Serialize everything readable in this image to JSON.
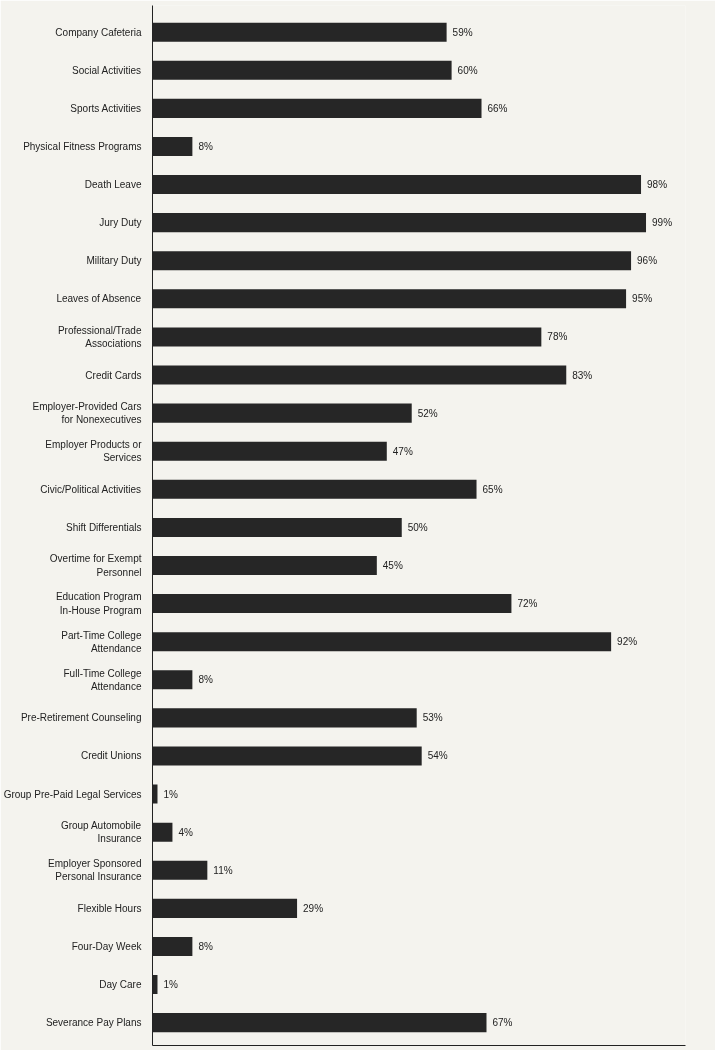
{
  "chart_data": {
    "type": "bar",
    "orientation": "horizontal",
    "categories": [
      "Company Cafeteria",
      "Social Activities",
      "Sports Activities",
      "Physical Fitness Programs",
      "Death Leave",
      "Jury Duty",
      "Military Duty",
      "Leaves of Absence",
      "Professional/Trade\nAssociations",
      "Credit Cards",
      "Employer-Provided Cars\nfor Nonexecutives",
      "Employer Products or\nServices",
      "Civic/Political Activities",
      "Shift Differentials",
      "Overtime for Exempt\nPersonnel",
      "Education Program\nIn-House Program",
      "Part-Time College\nAttendance",
      "Full-Time College\nAttendance",
      "Pre-Retirement Counseling",
      "Credit Unions",
      "Group Pre-Paid Legal Services",
      "Group Automobile\nInsurance",
      "Employer Sponsored\nPersonal Insurance",
      "Flexible Hours",
      "Four-Day Week",
      "Day Care",
      "Severance Pay Plans"
    ],
    "values": [
      59,
      60,
      66,
      8,
      98,
      99,
      96,
      95,
      78,
      83,
      52,
      47,
      65,
      50,
      45,
      72,
      92,
      8,
      53,
      54,
      1,
      4,
      11,
      29,
      8,
      1,
      67
    ],
    "value_labels": [
      "59%",
      "60%",
      "66%",
      "8%",
      "98%",
      "99%",
      "96%",
      "95%",
      "78%",
      "83%",
      "52%",
      "47%",
      "65%",
      "50%",
      "45%",
      "72%",
      "92%",
      "8%",
      "53%",
      "54%",
      "1%",
      "4%",
      "11%",
      "29%",
      "8%",
      "1%",
      "67%"
    ],
    "color": "#262626",
    "tick_labels": "y",
    "grid": false
  }
}
